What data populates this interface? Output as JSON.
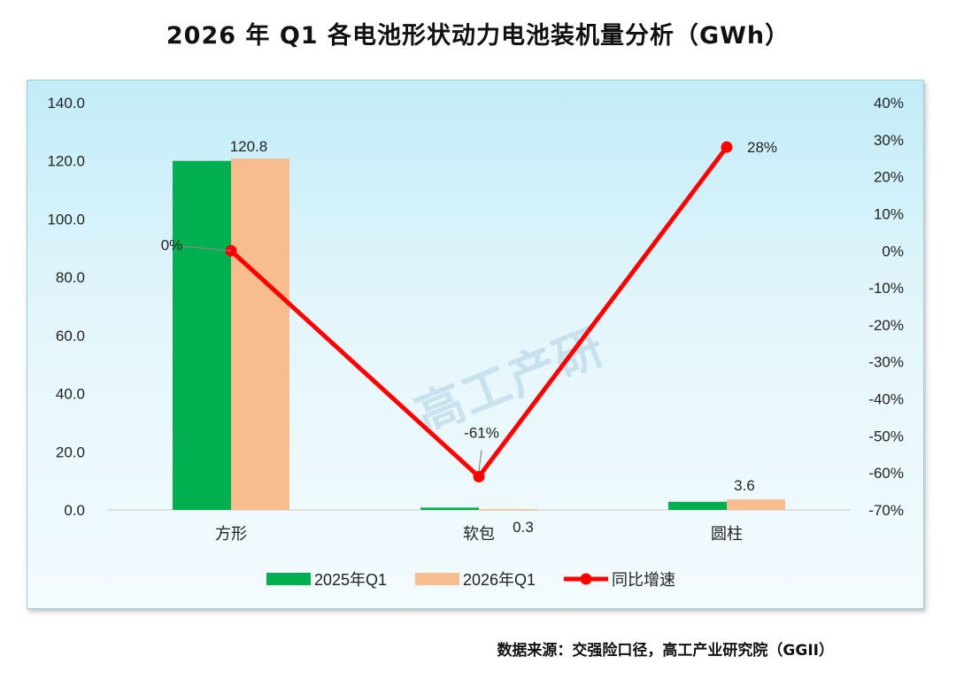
{
  "title": "2026 年 Q1 各电池形状动力电池装机量分析（GWh）",
  "source": "数据来源：交强险口径，高工产业研究院（GGII）",
  "watermark": "高工产研",
  "chart_data": {
    "type": "bar",
    "categories": [
      "方形",
      "软包",
      "圆柱"
    ],
    "series": [
      {
        "name": "2025年Q1",
        "type": "bar",
        "axis": "left",
        "color": "#00b050",
        "values": [
          120.0,
          0.8,
          2.8
        ]
      },
      {
        "name": "2026年Q1",
        "type": "bar",
        "axis": "left",
        "color": "#f8bd8f",
        "values": [
          120.8,
          0.3,
          3.6
        ]
      },
      {
        "name": "同比增速",
        "type": "line",
        "axis": "right",
        "color": "#ff0000",
        "values": [
          0,
          -61,
          28
        ]
      }
    ],
    "data_labels": {
      "2026年Q1": [
        "120.8",
        "0.3",
        "3.6"
      ],
      "同比增速": [
        "0%",
        "-61%",
        "28%"
      ]
    },
    "yleft": {
      "min": 0,
      "max": 140,
      "step": 20,
      "ticks": [
        "0.0",
        "20.0",
        "40.0",
        "60.0",
        "80.0",
        "100.0",
        "120.0",
        "140.0"
      ]
    },
    "yright": {
      "min": -70,
      "max": 40,
      "step": 10,
      "ticks": [
        "-70%",
        "-60%",
        "-50%",
        "-40%",
        "-30%",
        "-20%",
        "-10%",
        "0%",
        "10%",
        "20%",
        "30%",
        "40%"
      ]
    },
    "grid": false,
    "legend_position": "bottom"
  }
}
